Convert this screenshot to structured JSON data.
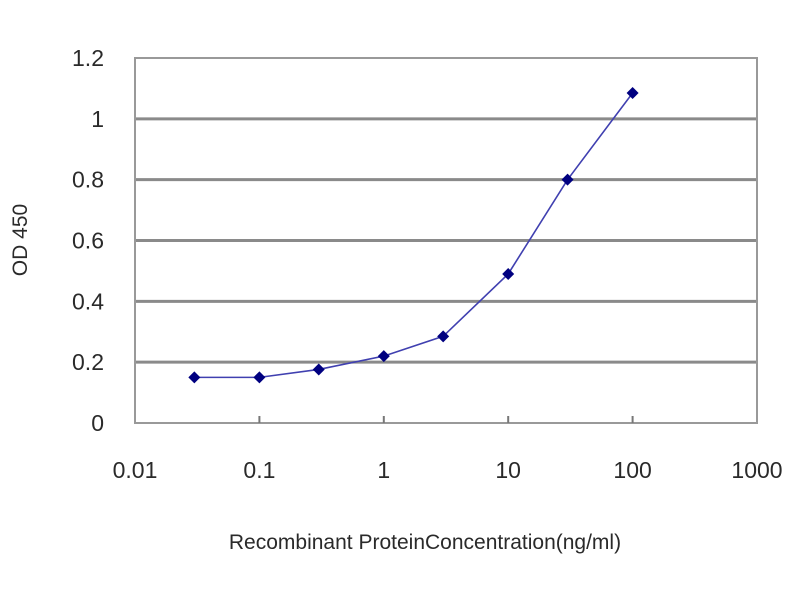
{
  "chart_data": {
    "type": "line",
    "title": "",
    "xlabel": "Recombinant ProteinConcentration(ng/ml)",
    "ylabel": "OD 450",
    "x_scale": "log",
    "xlim": [
      0.01,
      1000
    ],
    "ylim": [
      0,
      1.2
    ],
    "x_ticks": [
      "0.01",
      "0.1",
      "1",
      "10",
      "100",
      "1000"
    ],
    "y_ticks": [
      "0",
      "0.2",
      "0.4",
      "0.6",
      "0.8",
      "1",
      "1.2"
    ],
    "grid": "horizontal",
    "legend": "none",
    "series": [
      {
        "x": [
          0.03,
          0.1,
          0.3,
          1,
          3,
          10,
          30,
          100
        ],
        "y": [
          0.15,
          0.15,
          0.176,
          0.22,
          0.285,
          0.49,
          0.8,
          1.085
        ],
        "line_color": "#4040b0",
        "marker_color": "#000080",
        "marker": "diamond"
      }
    ]
  }
}
